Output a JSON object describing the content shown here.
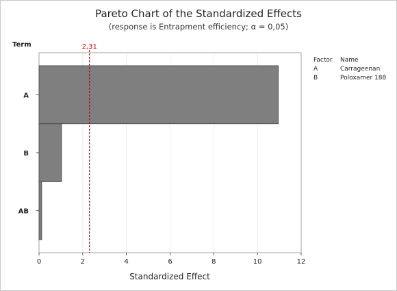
{
  "chart_data": {
    "type": "bar",
    "orientation": "horizontal",
    "title": "Pareto Chart of the Standardized Effects",
    "subtitle": "(response is Entrapment efficiency; α = 0,05)",
    "xlabel": "Standardized Effect",
    "ylabel": "Term",
    "categories": [
      "A",
      "B",
      "AB"
    ],
    "values": [
      10.95,
      1.03,
      0.12
    ],
    "xlim": [
      0,
      12
    ],
    "xticks": [
      "0",
      "2",
      "4",
      "6",
      "8",
      "10",
      "12"
    ],
    "grid": true,
    "reference_line": {
      "value": 2.31,
      "label": "2,31",
      "color": "#c00000"
    },
    "bar_color": "#7f7f7f",
    "legend": {
      "position": "right",
      "headers": [
        "Factor",
        "Name"
      ],
      "entries": [
        {
          "factor": "A",
          "name": "Carrageenan"
        },
        {
          "factor": "B",
          "name": "Poloxamer 188"
        }
      ]
    }
  }
}
